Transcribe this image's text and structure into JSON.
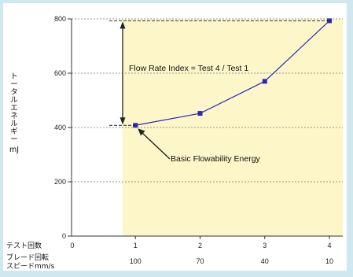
{
  "chart_data": {
    "type": "line",
    "ylabel_lines": [
      "ト",
      "ー",
      "タ",
      "ル",
      "エ",
      "ネ",
      "ル",
      "ギ",
      "ー",
      "mJ"
    ],
    "ylim": [
      0,
      800
    ],
    "yticks": [
      0,
      200,
      400,
      600,
      800
    ],
    "xlim": [
      0,
      4
    ],
    "x_row_label": "テスト回数",
    "x_ticks": [
      "0",
      "1",
      "2",
      "3",
      "4"
    ],
    "blade_row_label": [
      "ブレード回転",
      "スピードmm/s"
    ],
    "blade_speeds": [
      {
        "x": 1,
        "label": "100"
      },
      {
        "x": 2,
        "label": "70"
      },
      {
        "x": 3,
        "label": "40"
      },
      {
        "x": 4,
        "label": "10"
      }
    ],
    "series": [
      {
        "color": "#2a2ab8",
        "x": [
          1,
          2,
          3,
          4
        ],
        "y": [
          408,
          452,
          570,
          793
        ]
      }
    ],
    "grid": true,
    "shaded_region": {
      "x_from": 0.8,
      "x_to": 4,
      "color": "#fdf6c8"
    },
    "annotations": {
      "flow_rate": "Flow Rate Index = Test 4 / Test 1",
      "bfe": "Basic Flowability Energy"
    }
  }
}
